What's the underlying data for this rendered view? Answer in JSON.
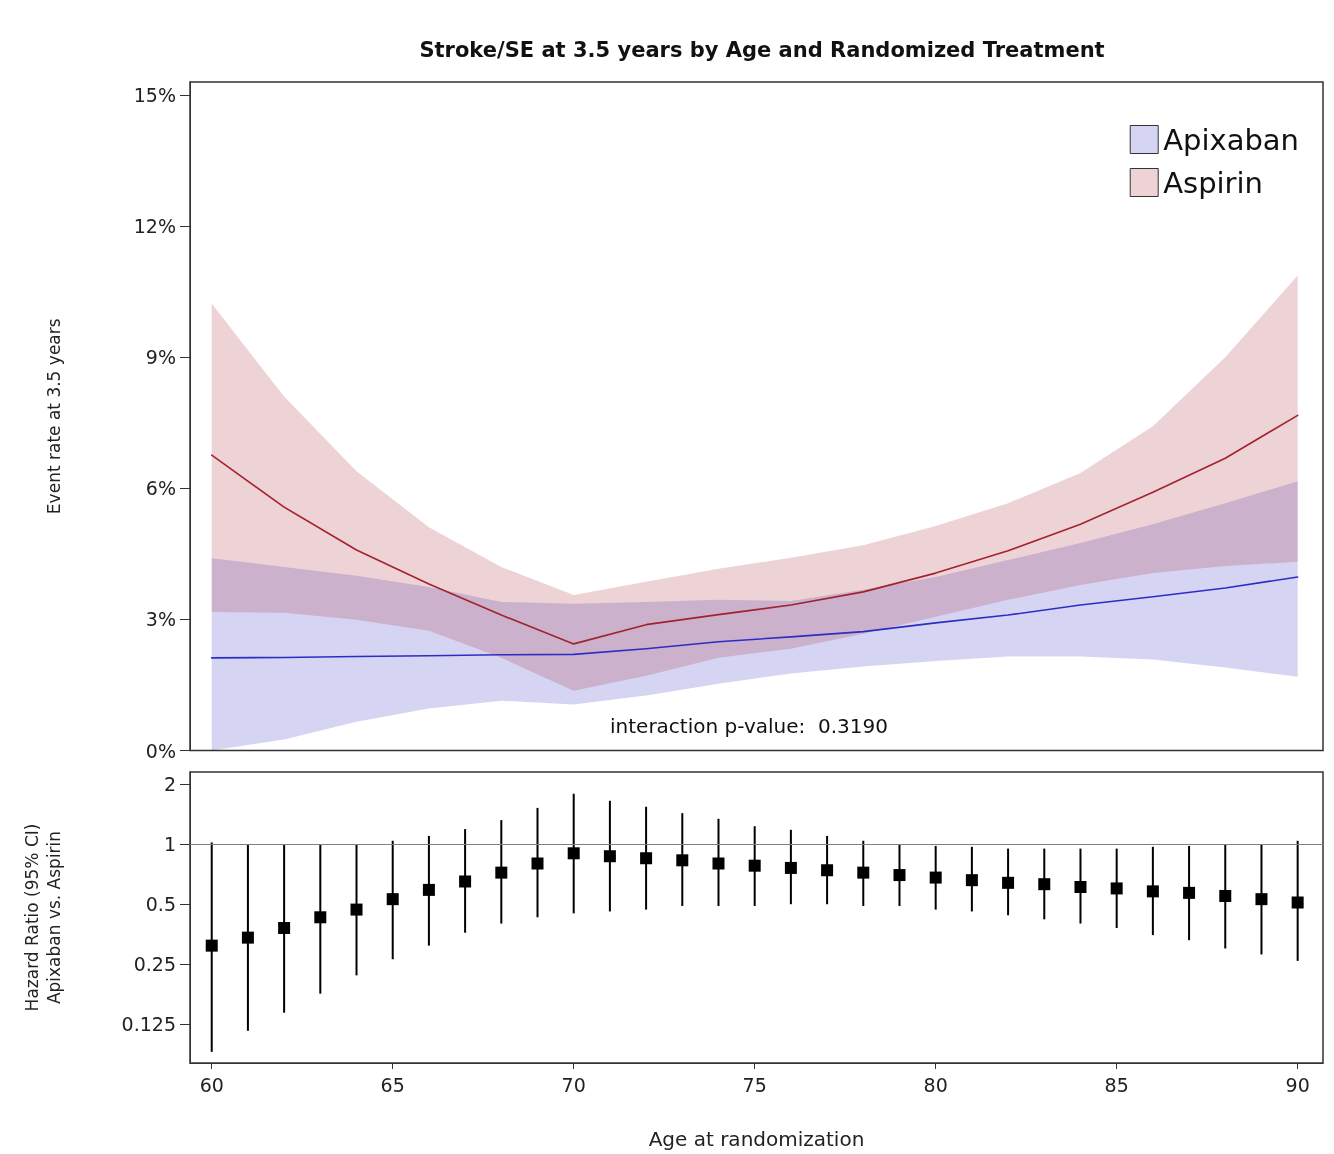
{
  "chart_data": [
    {
      "type": "line",
      "title": "Stroke/SE at 3.5 years by Age and Randomized Treatment",
      "ylabel": "Event rate at 3.5 years",
      "x": [
        60,
        62,
        64,
        66,
        68,
        70,
        72,
        74,
        76,
        78,
        80,
        82,
        84,
        86,
        88,
        90
      ],
      "xlim": [
        59.4,
        90.7
      ],
      "xticks": [
        60,
        65,
        70,
        75,
        80,
        85,
        90
      ],
      "ylim": [
        0,
        15.3
      ],
      "yticks": [
        {
          "value": 0,
          "label": "0%"
        },
        {
          "value": 3,
          "label": "3%"
        },
        {
          "value": 6,
          "label": "6%"
        },
        {
          "value": 9,
          "label": "9%"
        },
        {
          "value": 12,
          "label": "12%"
        },
        {
          "value": 15,
          "label": "15%"
        }
      ],
      "tick_labels": "y",
      "legend": "top right",
      "annotations": [
        "interaction p-value:  0.3190"
      ],
      "series": [
        {
          "name": "Apixaban",
          "color": "#2d2dc4",
          "values": [
            2.12,
            2.13,
            2.15,
            2.17,
            2.19,
            2.2,
            2.33,
            2.49,
            2.6,
            2.72,
            2.92,
            3.1,
            3.33,
            3.52,
            3.72,
            3.97
          ],
          "lower": [
            0.0,
            0.25,
            0.66,
            0.96,
            1.14,
            1.05,
            1.26,
            1.53,
            1.76,
            1.92,
            2.05,
            2.15,
            2.15,
            2.08,
            1.9,
            1.69
          ],
          "upper": [
            4.4,
            4.2,
            4.0,
            3.74,
            3.4,
            3.36,
            3.4,
            3.45,
            3.42,
            3.68,
            3.97,
            4.36,
            4.75,
            5.18,
            5.66,
            6.16
          ]
        },
        {
          "name": "Aspirin",
          "color": "#a4222f",
          "values": [
            6.76,
            5.57,
            4.59,
            3.81,
            3.1,
            2.44,
            2.88,
            3.11,
            3.33,
            3.63,
            4.06,
            4.57,
            5.18,
            5.91,
            6.69,
            7.67
          ],
          "lower": [
            3.17,
            3.15,
            2.99,
            2.74,
            2.12,
            1.37,
            1.71,
            2.12,
            2.33,
            2.67,
            3.06,
            3.45,
            3.79,
            4.06,
            4.22,
            4.32
          ],
          "upper": [
            10.23,
            8.1,
            6.39,
            5.11,
            4.2,
            3.56,
            3.86,
            4.16,
            4.41,
            4.7,
            5.14,
            5.66,
            6.35,
            7.42,
            9.0,
            10.87
          ]
        }
      ]
    },
    {
      "type": "scatter",
      "xlabel": "Age at randomization",
      "ylabel": "Hazard Ratio (95% CI)\nApixaban vs. Aspirin",
      "x": [
        60,
        61,
        62,
        63,
        64,
        65,
        66,
        67,
        68,
        69,
        70,
        71,
        72,
        73,
        74,
        75,
        76,
        77,
        78,
        79,
        80,
        81,
        82,
        83,
        84,
        85,
        86,
        87,
        88,
        89,
        90
      ],
      "xlim": [
        59.4,
        90.7
      ],
      "xticks": [
        60,
        65,
        70,
        75,
        80,
        85,
        90
      ],
      "ylim": [
        0.08,
        2.3
      ],
      "yticks": [
        0.125,
        0.25,
        0.5,
        1,
        2
      ],
      "log": "y",
      "marker": "square",
      "color": "#000000",
      "values": [
        0.31,
        0.34,
        0.38,
        0.43,
        0.47,
        0.53,
        0.59,
        0.65,
        0.72,
        0.8,
        0.9,
        0.87,
        0.85,
        0.83,
        0.8,
        0.78,
        0.76,
        0.74,
        0.72,
        0.7,
        0.68,
        0.66,
        0.64,
        0.63,
        0.61,
        0.6,
        0.58,
        0.57,
        0.55,
        0.53,
        0.51
      ],
      "errors": [
        [
          0.091,
          1.02
        ],
        [
          0.116,
          1.0
        ],
        [
          0.143,
          0.99
        ],
        [
          0.178,
          0.99
        ],
        [
          0.22,
          1.0
        ],
        [
          0.265,
          1.04
        ],
        [
          0.31,
          1.1
        ],
        [
          0.36,
          1.19
        ],
        [
          0.4,
          1.32
        ],
        [
          0.43,
          1.52
        ],
        [
          0.45,
          1.79
        ],
        [
          0.46,
          1.65
        ],
        [
          0.47,
          1.54
        ],
        [
          0.49,
          1.43
        ],
        [
          0.49,
          1.34
        ],
        [
          0.49,
          1.23
        ],
        [
          0.5,
          1.18
        ],
        [
          0.5,
          1.1
        ],
        [
          0.49,
          1.04
        ],
        [
          0.49,
          1.0
        ],
        [
          0.47,
          0.98
        ],
        [
          0.46,
          0.97
        ],
        [
          0.44,
          0.95
        ],
        [
          0.42,
          0.95
        ],
        [
          0.4,
          0.95
        ],
        [
          0.38,
          0.95
        ],
        [
          0.35,
          0.97
        ],
        [
          0.33,
          0.98
        ],
        [
          0.3,
          0.99
        ],
        [
          0.28,
          1.0
        ],
        [
          0.26,
          1.04
        ]
      ],
      "ref_lines": [
        {
          "axis": "y",
          "value": 1,
          "color": "#808080"
        }
      ]
    }
  ]
}
